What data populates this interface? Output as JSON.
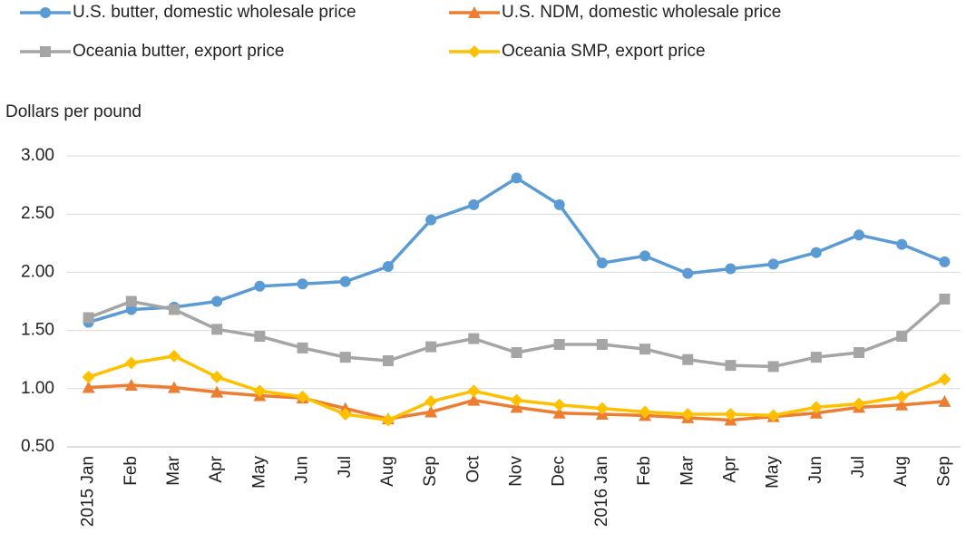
{
  "chart_data": {
    "type": "line",
    "y_axis_label": "Dollars per pound",
    "categories": [
      "2015 Jan",
      "Feb",
      "Mar",
      "Apr",
      "May",
      "Jun",
      "Jul",
      "Aug",
      "Sep",
      "Oct",
      "Nov",
      "Dec",
      "2016 Jan",
      "Feb",
      "Mar",
      "Apr",
      "May",
      "Jun",
      "Jul",
      "Aug",
      "Sep"
    ],
    "series": [
      {
        "name": "U.S. butter, domestic wholesale price",
        "color": "#5b9bd5",
        "marker": "circle",
        "values": [
          1.57,
          1.68,
          1.7,
          1.75,
          1.88,
          1.9,
          1.92,
          2.05,
          2.45,
          2.58,
          2.81,
          2.58,
          2.08,
          2.14,
          1.99,
          2.03,
          2.07,
          2.17,
          2.32,
          2.24,
          2.09
        ]
      },
      {
        "name": "U.S. NDM, domestic wholesale price",
        "color": "#ed7d31",
        "marker": "triangle",
        "values": [
          1.01,
          1.03,
          1.01,
          0.97,
          0.94,
          0.92,
          0.83,
          0.74,
          0.8,
          0.9,
          0.84,
          0.79,
          0.78,
          0.77,
          0.75,
          0.73,
          0.76,
          0.79,
          0.84,
          0.86,
          0.89
        ]
      },
      {
        "name": "Oceania butter, export price",
        "color": "#a5a5a5",
        "marker": "square",
        "values": [
          1.61,
          1.75,
          1.68,
          1.51,
          1.45,
          1.35,
          1.27,
          1.24,
          1.36,
          1.43,
          1.31,
          1.38,
          1.38,
          1.34,
          1.25,
          1.2,
          1.19,
          1.27,
          1.31,
          1.45,
          1.77
        ]
      },
      {
        "name": "Oceania SMP, export price",
        "color": "#ffc000",
        "marker": "diamond",
        "values": [
          1.1,
          1.22,
          1.28,
          1.1,
          0.98,
          0.93,
          0.78,
          0.73,
          0.89,
          0.98,
          0.9,
          0.86,
          0.83,
          0.8,
          0.78,
          0.78,
          0.77,
          0.84,
          0.87,
          0.93,
          1.08
        ]
      }
    ],
    "ylim": [
      0.5,
      3.0
    ],
    "yticks": [
      {
        "value": 0.5,
        "label": "0.50"
      },
      {
        "value": 1,
        "label": "1.00"
      },
      {
        "value": 1.5,
        "label": "1.50"
      },
      {
        "value": 2,
        "label": "2.00"
      },
      {
        "value": 2.5,
        "label": "2.50"
      },
      {
        "value": 3,
        "label": "3.00"
      }
    ],
    "grid": true,
    "legend": "top"
  }
}
